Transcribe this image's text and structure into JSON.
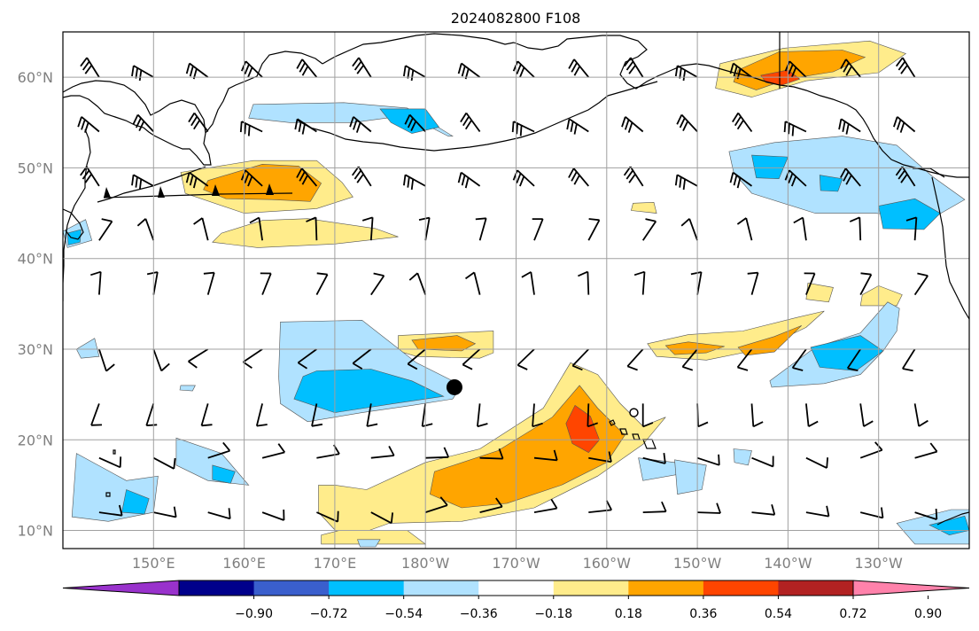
{
  "map": {
    "title": "2024082800 F108",
    "projection": "PlateCarree",
    "extent": {
      "lon_min": 140,
      "lon_max": 240,
      "lat_min": 8,
      "lat_max": 65
    },
    "lat_ticks": [
      {
        "value": 10,
        "label": "10°N"
      },
      {
        "value": 20,
        "label": "20°N"
      },
      {
        "value": 30,
        "label": "30°N"
      },
      {
        "value": 40,
        "label": "40°N"
      },
      {
        "value": 50,
        "label": "50°N"
      },
      {
        "value": 60,
        "label": "60°N"
      }
    ],
    "lon_ticks": [
      {
        "value": 150,
        "label": "150°E"
      },
      {
        "value": 160,
        "label": "160°E"
      },
      {
        "value": 170,
        "label": "170°E"
      },
      {
        "value": 180,
        "label": "180°W"
      },
      {
        "value": 190,
        "label": "170°W"
      },
      {
        "value": 200,
        "label": "160°W"
      },
      {
        "value": 210,
        "label": "150°W"
      },
      {
        "value": 220,
        "label": "140°W"
      },
      {
        "value": 230,
        "label": "130°W"
      }
    ],
    "grid": true,
    "markers": [
      {
        "type": "filled-circle",
        "lon": 183.2,
        "lat": 25.8
      },
      {
        "type": "open-circle",
        "lon": 203.0,
        "lat": 23.0
      }
    ]
  },
  "colorbar": {
    "ticks": [
      "−0.90",
      "−0.72",
      "−0.54",
      "−0.36",
      "−0.18",
      "0.18",
      "0.36",
      "0.54",
      "0.72",
      "0.90"
    ],
    "colors": [
      "#9932cc",
      "#00008b",
      "#3a5fcd",
      "#00bfff",
      "#b0e2ff",
      "#ffffff",
      "#ffec8b",
      "#ffa500",
      "#ff4500",
      "#b22222",
      "#ff82ab"
    ],
    "extend": "both"
  },
  "anomaly_regions": [
    {
      "level": "#ffec8b",
      "pts": [
        [
          173.5,
          14.5
        ],
        [
          180,
          17.5
        ],
        [
          186,
          19
        ],
        [
          193,
          23.5
        ],
        [
          196,
          28.5
        ],
        [
          199,
          27.2
        ],
        [
          201.5,
          24
        ],
        [
          204,
          21.5
        ],
        [
          206.5,
          22.5
        ],
        [
          204,
          19.5
        ],
        [
          199,
          16
        ],
        [
          192,
          12.5
        ],
        [
          184,
          11
        ],
        [
          176,
          10.8
        ],
        [
          171,
          9
        ],
        [
          168.2,
          12
        ],
        [
          168.2,
          15
        ],
        [
          170,
          15
        ]
      ]
    },
    {
      "level": "#ffa500",
      "pts": [
        [
          181,
          16.5
        ],
        [
          188,
          18.8
        ],
        [
          194,
          22.5
        ],
        [
          197,
          26
        ],
        [
          199,
          23.5
        ],
        [
          202,
          20.5
        ],
        [
          200,
          17.5
        ],
        [
          195,
          15
        ],
        [
          189,
          13
        ],
        [
          184,
          12.5
        ],
        [
          180.5,
          14
        ]
      ]
    },
    {
      "level": "#ff4500",
      "pts": [
        [
          196.5,
          23.8
        ],
        [
          198.2,
          22.6
        ],
        [
          199.2,
          20
        ],
        [
          198,
          18.6
        ],
        [
          196.2,
          19.6
        ],
        [
          195.5,
          21.8
        ]
      ]
    },
    {
      "level": "#ffec8b",
      "pts": [
        [
          170.5,
          10
        ],
        [
          178,
          10
        ],
        [
          180,
          8.5
        ],
        [
          168.5,
          8.5
        ],
        [
          168.5,
          9.5
        ]
      ]
    },
    {
      "level": "#ffec8b",
      "pts": [
        [
          153,
          49.5
        ],
        [
          161,
          50.8
        ],
        [
          168,
          50.8
        ],
        [
          170.8,
          48.4
        ],
        [
          172,
          46.8
        ],
        [
          168,
          45.5
        ],
        [
          160,
          45
        ],
        [
          153.5,
          47.2
        ]
      ]
    },
    {
      "level": "#ffa500",
      "pts": [
        [
          156,
          48.6
        ],
        [
          162,
          50.4
        ],
        [
          166,
          50.2
        ],
        [
          168.5,
          48.3
        ],
        [
          167.3,
          46.3
        ],
        [
          163,
          46.5
        ],
        [
          158,
          46.6
        ],
        [
          155.5,
          47.6
        ]
      ]
    },
    {
      "level": "#ffec8b",
      "pts": [
        [
          156.5,
          41.8
        ],
        [
          161.5,
          41.2
        ],
        [
          170,
          41.6
        ],
        [
          177,
          42.4
        ],
        [
          174.5,
          43.3
        ],
        [
          167,
          44.4
        ],
        [
          162,
          44.2
        ],
        [
          157.5,
          42.8
        ]
      ]
    },
    {
      "level": "#ffec8b",
      "pts": [
        [
          177,
          31.5
        ],
        [
          187.5,
          32
        ],
        [
          187.5,
          29.6
        ],
        [
          186,
          29
        ],
        [
          179,
          29.2
        ],
        [
          177,
          29.8
        ]
      ]
    },
    {
      "level": "#ffa500",
      "pts": [
        [
          178.5,
          31
        ],
        [
          183.5,
          31.5
        ],
        [
          185.5,
          30.6
        ],
        [
          184,
          29.8
        ],
        [
          179.2,
          30
        ]
      ]
    },
    {
      "level": "#ffec8b",
      "pts": [
        [
          204.5,
          30.6
        ],
        [
          209,
          31.6
        ],
        [
          215,
          32
        ],
        [
          221,
          33.5
        ],
        [
          224,
          34.2
        ],
        [
          222,
          32.4
        ],
        [
          217,
          30
        ],
        [
          211,
          28.8
        ],
        [
          205.5,
          29.2
        ]
      ]
    },
    {
      "level": "#ffa500",
      "pts": [
        [
          206.5,
          30.4
        ],
        [
          209,
          30.8
        ],
        [
          213,
          30.3
        ],
        [
          211,
          29.6
        ],
        [
          207.5,
          29.4
        ]
      ]
    },
    {
      "level": "#ffa500",
      "pts": [
        [
          214.5,
          30.2
        ],
        [
          218.5,
          31.4
        ],
        [
          221.5,
          32.6
        ],
        [
          218.5,
          29.7
        ],
        [
          215.3,
          29.3
        ]
      ]
    },
    {
      "level": "#ffec8b",
      "pts": [
        [
          212.5,
          61.5
        ],
        [
          219.5,
          63.2
        ],
        [
          229,
          64
        ],
        [
          233,
          62.6
        ],
        [
          230,
          60.5
        ],
        [
          222,
          59.6
        ],
        [
          216,
          57.8
        ],
        [
          212,
          58.8
        ]
      ]
    },
    {
      "level": "#ffa500",
      "pts": [
        [
          214.5,
          60.8
        ],
        [
          219,
          62.8
        ],
        [
          226,
          63
        ],
        [
          228.5,
          62.2
        ],
        [
          225,
          60.6
        ],
        [
          220,
          59.8
        ],
        [
          216.5,
          58.6
        ],
        [
          214,
          59.5
        ]
      ]
    },
    {
      "level": "#ff4500",
      "pts": [
        [
          217,
          60.2
        ],
        [
          220,
          60.8
        ],
        [
          221.3,
          59.8
        ],
        [
          219.3,
          59.1
        ],
        [
          217.6,
          59.4
        ]
      ]
    },
    {
      "level": "#ffec8b",
      "pts": [
        [
          228,
          34.8
        ],
        [
          232,
          34.8
        ],
        [
          232.6,
          36
        ],
        [
          230,
          37
        ],
        [
          228.2,
          36
        ]
      ]
    },
    {
      "level": "#ffec8b",
      "pts": [
        [
          222,
          35.5
        ],
        [
          224.5,
          35.2
        ],
        [
          225,
          36.8
        ],
        [
          222.2,
          37.3
        ]
      ]
    },
    {
      "level": "#ffec8b",
      "pts": [
        [
          202.7,
          45.3
        ],
        [
          205.5,
          45
        ],
        [
          205.2,
          46.2
        ],
        [
          202.9,
          46.1
        ]
      ]
    },
    {
      "level": "#b0e2ff",
      "pts": [
        [
          161,
          57
        ],
        [
          171,
          57.2
        ],
        [
          178,
          56.6
        ],
        [
          183,
          53.5
        ],
        [
          182.5,
          53.5
        ],
        [
          178,
          55.8
        ],
        [
          172,
          55
        ],
        [
          165,
          55
        ],
        [
          160.5,
          55.5
        ]
      ]
    },
    {
      "level": "#00bfff",
      "pts": [
        [
          175,
          56.5
        ],
        [
          180,
          56.5
        ],
        [
          181.5,
          54.5
        ],
        [
          178.5,
          53.8
        ],
        [
          176.2,
          55
        ]
      ]
    },
    {
      "level": "#b0e2ff",
      "pts": [
        [
          164,
          33
        ],
        [
          173,
          33.2
        ],
        [
          179,
          28.5
        ],
        [
          184,
          26
        ],
        [
          183,
          24.5
        ],
        [
          178.5,
          23.8
        ],
        [
          173,
          23
        ],
        [
          167,
          22
        ],
        [
          164,
          24
        ],
        [
          163.8,
          27
        ]
      ]
    },
    {
      "level": "#00bfff",
      "pts": [
        [
          168,
          27.6
        ],
        [
          174,
          27.8
        ],
        [
          178.5,
          26.5
        ],
        [
          182,
          24.8
        ],
        [
          176.5,
          24
        ],
        [
          170,
          23
        ],
        [
          165.5,
          24.5
        ],
        [
          166.5,
          27
        ]
      ]
    },
    {
      "level": "#b0e2ff",
      "pts": [
        [
          213.5,
          51.8
        ],
        [
          218.5,
          52.8
        ],
        [
          226,
          53.5
        ],
        [
          232,
          52.5
        ],
        [
          236,
          49
        ],
        [
          239.5,
          46.5
        ],
        [
          236,
          44.5
        ],
        [
          229.5,
          45
        ],
        [
          223,
          45
        ],
        [
          216,
          47.2
        ],
        [
          214,
          49.5
        ]
      ]
    },
    {
      "level": "#00bfff",
      "pts": [
        [
          216,
          51.4
        ],
        [
          220,
          51.2
        ],
        [
          219,
          48.8
        ],
        [
          216.5,
          48.9
        ]
      ]
    },
    {
      "level": "#00bfff",
      "pts": [
        [
          223.5,
          49.2
        ],
        [
          226,
          48.8
        ],
        [
          225.5,
          47.4
        ],
        [
          223.6,
          47.5
        ]
      ]
    },
    {
      "level": "#00bfff",
      "pts": [
        [
          230,
          45.8
        ],
        [
          234,
          46.6
        ],
        [
          236.8,
          45
        ],
        [
          235,
          43.2
        ],
        [
          230.5,
          43.3
        ]
      ]
    },
    {
      "level": "#b0e2ff",
      "pts": [
        [
          218,
          26.5
        ],
        [
          223,
          30.2
        ],
        [
          228,
          31.8
        ],
        [
          231,
          35.2
        ],
        [
          232.3,
          34.5
        ],
        [
          232,
          32
        ],
        [
          230.5,
          29.8
        ],
        [
          228,
          27.2
        ],
        [
          224,
          26.2
        ],
        [
          218.2,
          25.8
        ]
      ]
    },
    {
      "level": "#00bfff",
      "pts": [
        [
          222.5,
          30.2
        ],
        [
          228,
          31.5
        ],
        [
          230.5,
          29.8
        ],
        [
          227.5,
          27.6
        ],
        [
          223.5,
          28
        ]
      ]
    },
    {
      "level": "#b0e2ff",
      "pts": [
        [
          141.5,
          18.5
        ],
        [
          147,
          15.5
        ],
        [
          150.5,
          16
        ],
        [
          150,
          12
        ],
        [
          145,
          11
        ],
        [
          141,
          11.5
        ]
      ]
    },
    {
      "level": "#00bfff",
      "pts": [
        [
          147,
          14.5
        ],
        [
          149.5,
          13.5
        ],
        [
          149,
          11.8
        ],
        [
          146.5,
          12
        ]
      ]
    },
    {
      "level": "#b0e2ff",
      "pts": [
        [
          152.5,
          20.2
        ],
        [
          157.5,
          18.5
        ],
        [
          160.5,
          15
        ],
        [
          156,
          15.5
        ],
        [
          152.5,
          17.2
        ]
      ]
    },
    {
      "level": "#00bfff",
      "pts": [
        [
          156.5,
          17.2
        ],
        [
          159,
          16.5
        ],
        [
          158.5,
          15.2
        ],
        [
          156.5,
          15.6
        ]
      ]
    },
    {
      "level": "#b0e2ff",
      "pts": [
        [
          141.5,
          30
        ],
        [
          143.5,
          31.2
        ],
        [
          144,
          29.2
        ],
        [
          142,
          29
        ]
      ]
    },
    {
      "level": "#b0e2ff",
      "pts": [
        [
          140,
          43
        ],
        [
          142.5,
          44.3
        ],
        [
          143.2,
          42
        ],
        [
          140.5,
          41.2
        ]
      ]
    },
    {
      "level": "#00bfff",
      "pts": [
        [
          140.5,
          42.8
        ],
        [
          142,
          43.2
        ],
        [
          141.9,
          41.8
        ],
        [
          140.6,
          41.5
        ]
      ]
    },
    {
      "level": "#b0e2ff",
      "pts": [
        [
          203.5,
          18
        ],
        [
          207.5,
          17.5
        ],
        [
          208,
          16.2
        ],
        [
          204,
          15.5
        ]
      ]
    },
    {
      "level": "#b0e2ff",
      "pts": [
        [
          207.5,
          17.8
        ],
        [
          211,
          17.2
        ],
        [
          210.5,
          14.5
        ],
        [
          207.8,
          14
        ]
      ]
    },
    {
      "level": "#b0e2ff",
      "pts": [
        [
          214,
          19
        ],
        [
          216,
          18.8
        ],
        [
          215.6,
          17.2
        ],
        [
          214.1,
          17.5
        ]
      ]
    },
    {
      "level": "#b0e2ff",
      "pts": [
        [
          232,
          10.8
        ],
        [
          238,
          12.3
        ],
        [
          240,
          12.3
        ],
        [
          240,
          8.5
        ],
        [
          234,
          8.5
        ]
      ]
    },
    {
      "level": "#00bfff",
      "pts": [
        [
          235.6,
          10.6
        ],
        [
          239.5,
          11.6
        ],
        [
          240,
          10
        ],
        [
          237.8,
          9.5
        ]
      ]
    },
    {
      "level": "#b0e2ff",
      "pts": [
        [
          172.5,
          9
        ],
        [
          175,
          9
        ],
        [
          174.5,
          8.2
        ],
        [
          172.8,
          8.2
        ]
      ]
    },
    {
      "level": "#b0e2ff",
      "pts": [
        [
          153,
          26
        ],
        [
          154.6,
          26
        ],
        [
          154.3,
          25.4
        ],
        [
          152.9,
          25.5
        ]
      ]
    }
  ]
}
